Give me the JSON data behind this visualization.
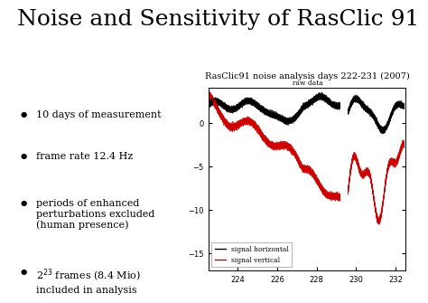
{
  "title": "Noise and Sensitivity of RasClic 91",
  "plot_title": "RasClic91 noise analysis days 222-231 (2007)",
  "plot_subtitle": "raw data",
  "xlabel_ticks": [
    224,
    226,
    228,
    230,
    232
  ],
  "xlim": [
    222.5,
    232.5
  ],
  "ylim": [
    -17,
    4
  ],
  "yticks": [
    0,
    -5,
    -10,
    -15
  ],
  "legend_labels": [
    "signal horizontal",
    "signal vertical"
  ],
  "black_color": "#000000",
  "red_color": "#cc0000",
  "bg_color": "#ffffff",
  "title_fontsize": 18,
  "bullet_fontsize": 8,
  "plot_title_fontsize": 7,
  "tick_fontsize": 6,
  "legend_fontsize": 5.5,
  "bullet_points": [
    "10 days of measurement",
    "frame rate 12.4 Hz",
    "periods of enhanced\nperturbations excluded\n(human presence)",
    "2^{23} frames (8.4 Mio)\nincluded in analysis"
  ]
}
